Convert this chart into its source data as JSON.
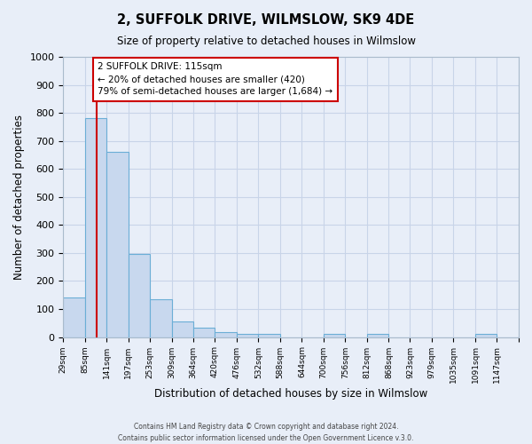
{
  "title": "2, SUFFOLK DRIVE, WILMSLOW, SK9 4DE",
  "subtitle": "Size of property relative to detached houses in Wilmslow",
  "xlabel": "Distribution of detached houses by size in Wilmslow",
  "ylabel": "Number of detached properties",
  "bar_labels": [
    "29sqm",
    "85sqm",
    "141sqm",
    "197sqm",
    "253sqm",
    "309sqm",
    "364sqm",
    "420sqm",
    "476sqm",
    "532sqm",
    "588sqm",
    "644sqm",
    "700sqm",
    "756sqm",
    "812sqm",
    "868sqm",
    "923sqm",
    "979sqm",
    "1035sqm",
    "1091sqm",
    "1147sqm"
  ],
  "bar_values": [
    140,
    780,
    660,
    295,
    135,
    57,
    33,
    18,
    10,
    10,
    0,
    0,
    10,
    0,
    10,
    0,
    0,
    0,
    0,
    10,
    0
  ],
  "bar_color": "#c8d8ee",
  "bar_edge_color": "#6baed6",
  "marker_line_color": "#cc0000",
  "annotation_text": "2 SUFFOLK DRIVE: 115sqm\n← 20% of detached houses are smaller (420)\n79% of semi-detached houses are larger (1,684) →",
  "annotation_box_color": "#ffffff",
  "annotation_box_edge": "#cc0000",
  "ylim": [
    0,
    1000
  ],
  "yticks": [
    0,
    100,
    200,
    300,
    400,
    500,
    600,
    700,
    800,
    900,
    1000
  ],
  "grid_color": "#c8d4e8",
  "background_color": "#e8eef8",
  "footer_line1": "Contains HM Land Registry data © Crown copyright and database right 2024.",
  "footer_line2": "Contains public sector information licensed under the Open Government Licence v.3.0.",
  "bin_edges": [
    29,
    85,
    141,
    197,
    253,
    309,
    364,
    420,
    476,
    532,
    588,
    644,
    700,
    756,
    812,
    868,
    923,
    979,
    1035,
    1091,
    1147,
    1203
  ],
  "property_size": 115
}
